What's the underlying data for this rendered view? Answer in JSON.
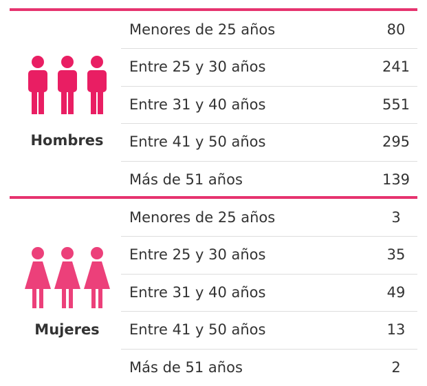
{
  "groups": [
    {
      "label": "Hombres",
      "rows": [
        {
          "range": "Menores de 25 años",
          "value": 80
        },
        {
          "range": "Entre 25 y 30 años",
          "value": 241
        },
        {
          "range": "Entre 31 y 40 años",
          "value": 551
        },
        {
          "range": "Entre 41 y 50 años",
          "value": 295
        },
        {
          "range": "Más de 51 años",
          "value": 139
        }
      ]
    },
    {
      "label": "Mujeres",
      "rows": [
        {
          "range": "Menores de 25 años",
          "value": 3
        },
        {
          "range": "Entre 25 y 30 años",
          "value": 35
        },
        {
          "range": "Entre 31 y 40 años",
          "value": 49
        },
        {
          "range": "Entre 41 y 50 años",
          "value": 13
        },
        {
          "range": "Más de 51 años",
          "value": 2
        }
      ]
    }
  ]
}
